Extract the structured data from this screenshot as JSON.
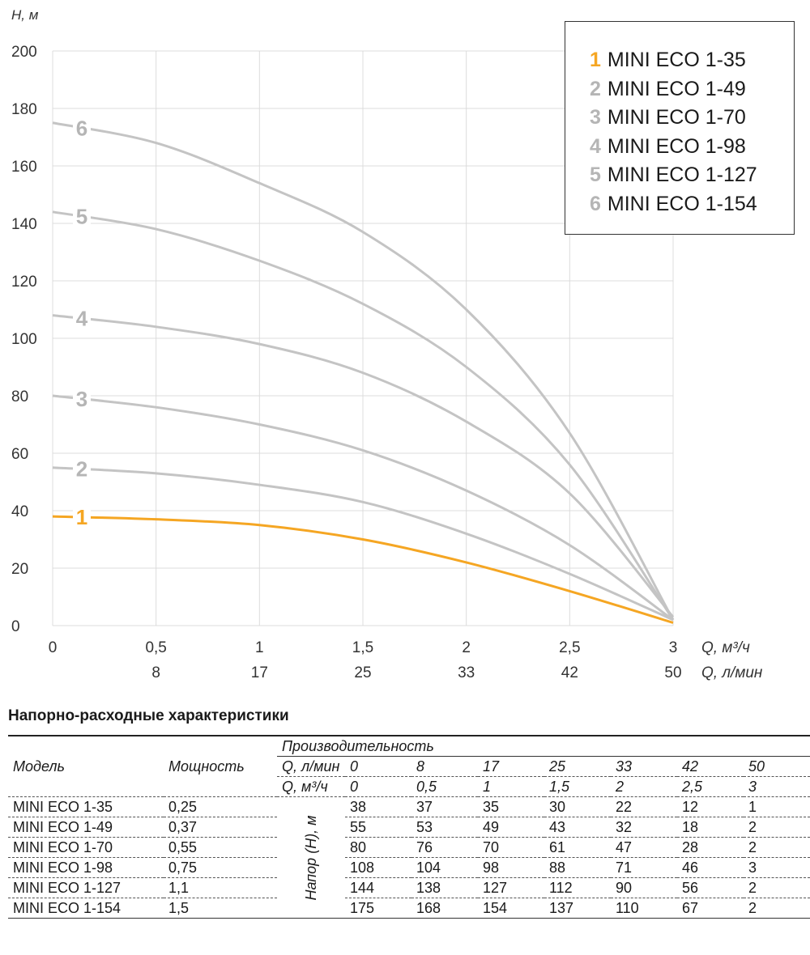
{
  "chart_data": {
    "type": "line",
    "y_axis_label": "H, м",
    "x_axis_label_m3h": "Q, м³/ч",
    "x_axis_label_lmin": "Q, л/мин",
    "ylim": [
      0,
      200
    ],
    "xlim": [
      0,
      3
    ],
    "y_ticks": [
      "0",
      "20",
      "40",
      "60",
      "80",
      "100",
      "120",
      "140",
      "160",
      "180",
      "200"
    ],
    "x_ticks_m3h": [
      "0",
      "0,5",
      "1",
      "1,5",
      "2",
      "2,5",
      "3"
    ],
    "x_ticks_lmin": [
      "",
      "8",
      "17",
      "25",
      "33",
      "42",
      "50"
    ],
    "x": [
      0,
      0.5,
      1,
      1.5,
      2,
      2.5,
      3
    ],
    "grid": true,
    "legend_position": "top-right",
    "series": [
      {
        "name": "MINI ECO 1-35",
        "label": "1",
        "color": "#f5a623",
        "values": [
          38,
          37,
          35,
          30,
          22,
          12,
          1
        ]
      },
      {
        "name": "MINI ECO 1-49",
        "label": "2",
        "color": "#c4c4c4",
        "values": [
          55,
          53,
          49,
          43,
          32,
          18,
          2
        ]
      },
      {
        "name": "MINI ECO 1-70",
        "label": "3",
        "color": "#c4c4c4",
        "values": [
          80,
          76,
          70,
          61,
          47,
          28,
          2
        ]
      },
      {
        "name": "MINI ECO 1-98",
        "label": "4",
        "color": "#c4c4c4",
        "values": [
          108,
          104,
          98,
          88,
          71,
          46,
          3
        ]
      },
      {
        "name": "MINI ECO 1-127",
        "label": "5",
        "color": "#c4c4c4",
        "values": [
          144,
          138,
          127,
          112,
          90,
          56,
          2
        ]
      },
      {
        "name": "MINI ECO 1-154",
        "label": "6",
        "color": "#c4c4c4",
        "values": [
          175,
          168,
          154,
          137,
          110,
          67,
          2
        ]
      }
    ]
  },
  "table": {
    "title": "Напорно-расходные характеристики",
    "col_model": "Модель",
    "col_power": "Мощность",
    "col_perf": "Производительность",
    "q_lmin_label": "Q, л/мин",
    "q_m3h_label": "Q, м³/ч",
    "head_label": "Напор (H), м",
    "q_lmin": [
      "0",
      "8",
      "17",
      "25",
      "33",
      "42",
      "50"
    ],
    "q_m3h": [
      "0",
      "0,5",
      "1",
      "1,5",
      "2",
      "2,5",
      "3"
    ],
    "rows": [
      {
        "model": "MINI ECO 1-35",
        "power": "0,25",
        "values": [
          "38",
          "37",
          "35",
          "30",
          "22",
          "12",
          "1"
        ]
      },
      {
        "model": "MINI ECO 1-49",
        "power": "0,37",
        "values": [
          "55",
          "53",
          "49",
          "43",
          "32",
          "18",
          "2"
        ]
      },
      {
        "model": "MINI ECO 1-70",
        "power": "0,55",
        "values": [
          "80",
          "76",
          "70",
          "61",
          "47",
          "28",
          "2"
        ]
      },
      {
        "model": "MINI ECO 1-98",
        "power": "0,75",
        "values": [
          "108",
          "104",
          "98",
          "88",
          "71",
          "46",
          "3"
        ]
      },
      {
        "model": "MINI ECO 1-127",
        "power": "1,1",
        "values": [
          "144",
          "138",
          "127",
          "112",
          "90",
          "56",
          "2"
        ]
      },
      {
        "model": "MINI ECO 1-154",
        "power": "1,5",
        "values": [
          "175",
          "168",
          "154",
          "137",
          "110",
          "67",
          "2"
        ]
      }
    ]
  }
}
